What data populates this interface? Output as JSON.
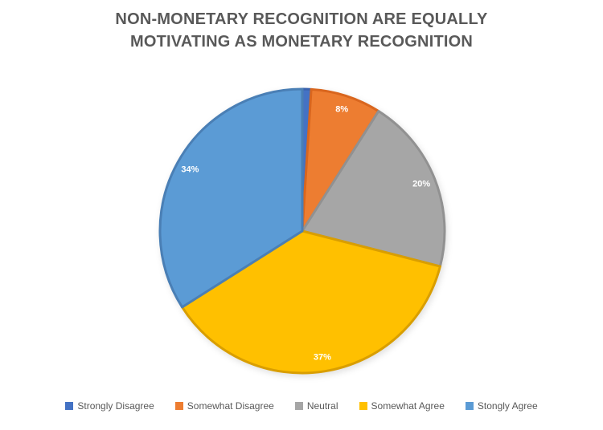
{
  "title": {
    "line1": "NON-MONETARY RECOGNITION ARE EQUALLY",
    "line2": "MOTIVATING AS MONETARY RECOGNITION",
    "color": "#595959"
  },
  "chart_data": {
    "type": "pie",
    "title": "NON-MONETARY RECOGNITION ARE EQUALLY MOTIVATING AS MONETARY RECOGNITION",
    "categories": [
      "Strongly Disagree",
      "Somewhat Disagree",
      "Neutral",
      "Somewhat Agree",
      "Stongly Agree"
    ],
    "values": [
      1,
      8,
      20,
      37,
      34
    ],
    "unit": "%",
    "data_labels": [
      "",
      "8%",
      "20%",
      "37%",
      "34%"
    ],
    "colors": [
      "#4472C4",
      "#ED7D31",
      "#A6A6A6",
      "#FFC000",
      "#5B9BD5"
    ],
    "border_colors": [
      "#3A62AE",
      "#D9661E",
      "#919191",
      "#D99E00",
      "#4A7FB5"
    ],
    "label_color": "#FFFFFF",
    "legend_position": "bottom",
    "legend_text_color": "#595959",
    "start_angle_deg": 0,
    "clockwise": true
  }
}
